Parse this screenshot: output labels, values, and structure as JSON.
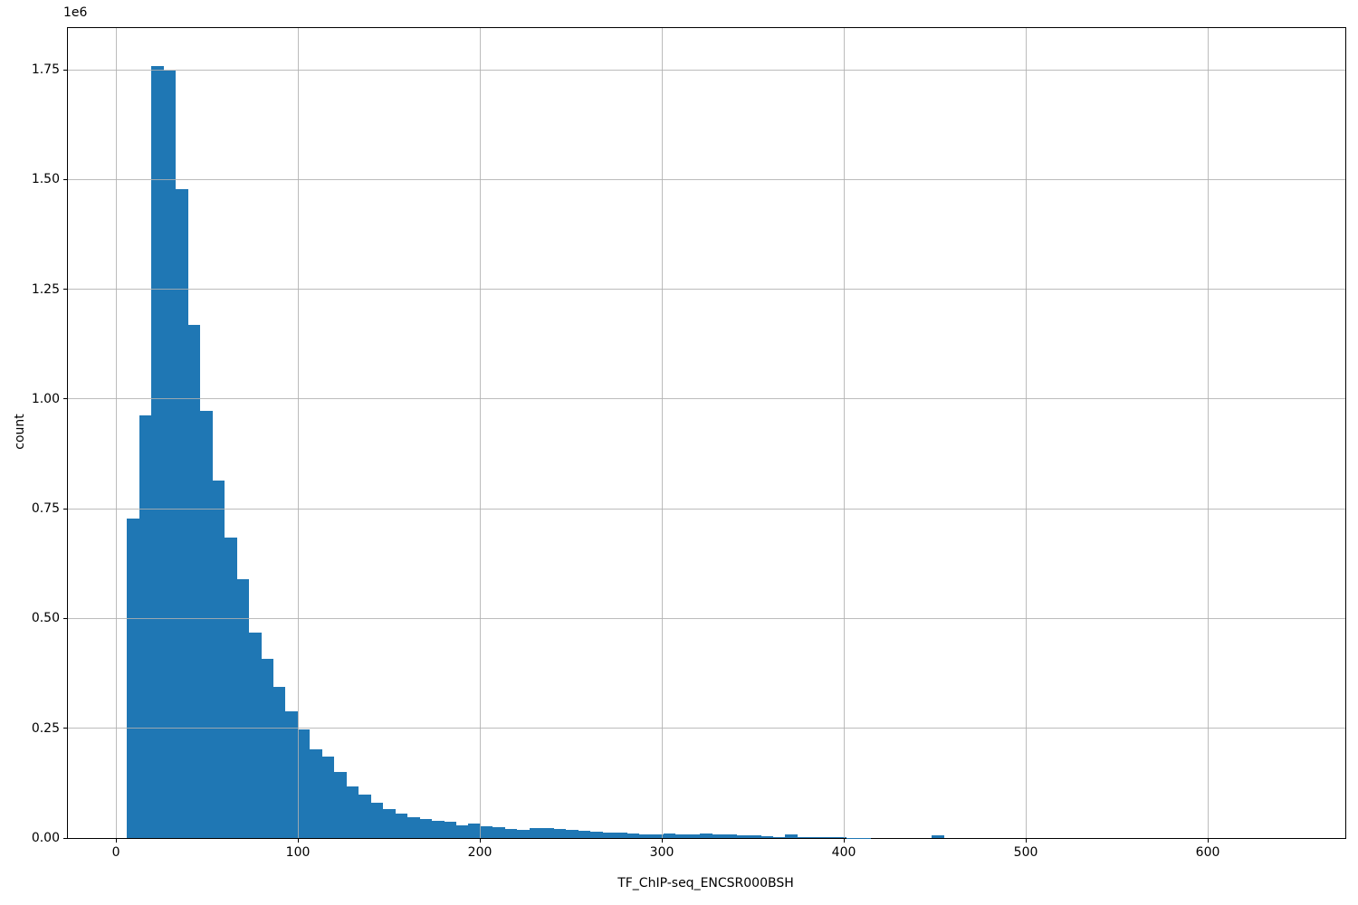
{
  "chart_data": {
    "type": "bar",
    "subtype": "histogram",
    "title": "",
    "xlabel": "TF_ChIP-seq_ENCSR000BSH",
    "ylabel": "count",
    "y_offset_text": "1e6",
    "bar_color": "#1f77b4",
    "grid_color": "#b0b0b0",
    "grid": true,
    "xlim": [
      -26.4,
      675.6
    ],
    "ylim": [
      0,
      1845000
    ],
    "xticks": [
      0,
      100,
      200,
      300,
      400,
      500,
      600
    ],
    "ytick_values": [
      0,
      250000,
      500000,
      750000,
      1000000,
      1250000,
      1500000,
      1750000
    ],
    "ytick_labels": [
      "0.00",
      "0.25",
      "0.50",
      "0.75",
      "1.00",
      "1.25",
      "1.50",
      "1.75"
    ],
    "bin_start": 6.0,
    "bin_width": 6.7,
    "bin_counts": [
      728000,
      963000,
      1759000,
      1749000,
      1478000,
      1168000,
      973000,
      814000,
      684000,
      589000,
      468000,
      409000,
      345000,
      289000,
      247000,
      203000,
      185000,
      150000,
      118000,
      98000,
      80000,
      67000,
      56000,
      47000,
      44000,
      40000,
      37000,
      29000,
      32000,
      27000,
      25000,
      20000,
      18000,
      23000,
      22000,
      21000,
      19000,
      16000,
      15000,
      13000,
      12000,
      11000,
      9000,
      8000,
      10000,
      8000,
      9000,
      10000,
      9000,
      8000,
      7000,
      6000,
      4000,
      3000,
      8000,
      3000,
      2000,
      2000,
      2000,
      1000,
      1000,
      0,
      0,
      0,
      0,
      0,
      6000
    ]
  }
}
